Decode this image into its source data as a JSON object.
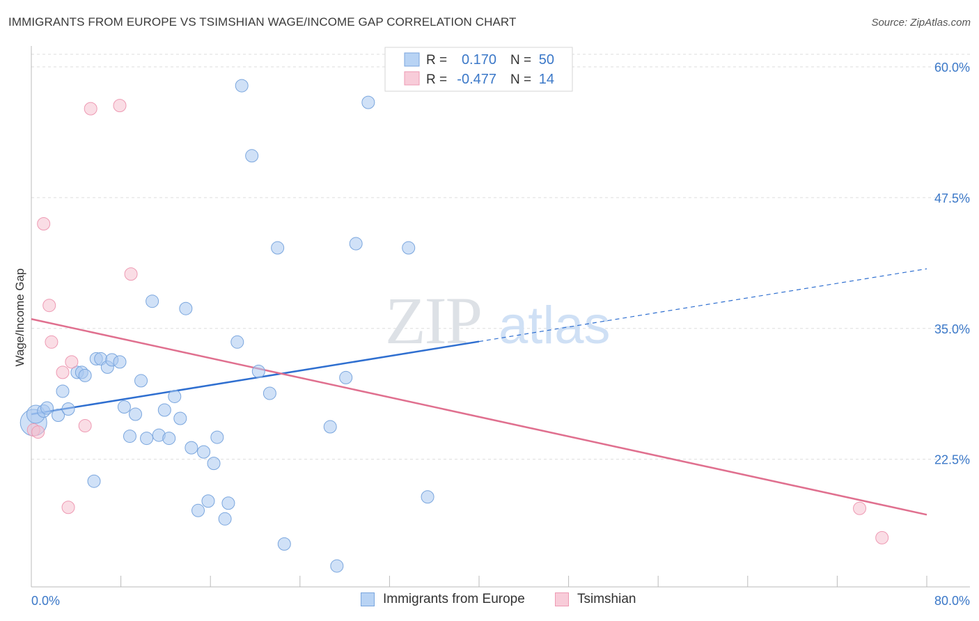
{
  "title": "IMMIGRANTS FROM EUROPE VS TSIMSHIAN WAGE/INCOME GAP CORRELATION CHART",
  "source": "Source: ZipAtlas.com",
  "watermark": {
    "zip": "ZIP",
    "atlas": "atlas"
  },
  "legend_top": {
    "rows": [
      {
        "r_label": "R =",
        "r_value": "0.170",
        "n_label": "N =",
        "n_value": "50"
      },
      {
        "r_label": "R =",
        "r_value": "-0.477",
        "n_label": "N =",
        "n_value": "14"
      }
    ]
  },
  "legend_bottom": {
    "items": [
      "Immigrants from Europe",
      "Tsimshian"
    ]
  },
  "colors": {
    "blue_fill": "#a9c8f0",
    "blue_stroke": "#7aa6de",
    "blue_line": "#2f6fd0",
    "pink_fill": "#f6c1d0",
    "pink_stroke": "#ee9ab3",
    "pink_line": "#e0708f",
    "axis_text": "#3b78c8",
    "grid": "#dddddd"
  },
  "chart_data": {
    "type": "scatter",
    "title": "IMMIGRANTS FROM EUROPE VS TSIMSHIAN WAGE/INCOME GAP CORRELATION CHART",
    "xlabel": "",
    "ylabel": "Wage/Income Gap",
    "xlim": [
      0,
      80
    ],
    "ylim": [
      10.3,
      61.2
    ],
    "x_tick_labels": [
      "0.0%",
      "80.0%"
    ],
    "y_ticks": [
      22.5,
      35.0,
      47.5,
      60.0
    ],
    "y_tick_labels": [
      "22.5%",
      "35.0%",
      "47.5%",
      "60.0%"
    ],
    "grid": true,
    "legend": "top-center",
    "series": [
      {
        "name": "Immigrants from Europe",
        "points": [
          [
            0.2,
            26.0,
            3
          ],
          [
            0.4,
            26.8,
            2
          ],
          [
            1.1,
            27.1,
            1
          ],
          [
            1.4,
            27.4,
            1
          ],
          [
            2.4,
            26.7,
            1
          ],
          [
            2.8,
            29.0,
            1
          ],
          [
            3.3,
            27.3,
            1
          ],
          [
            4.1,
            30.8,
            1
          ],
          [
            4.5,
            30.8,
            1
          ],
          [
            4.8,
            30.5,
            1
          ],
          [
            5.6,
            20.4,
            1
          ],
          [
            5.8,
            32.1,
            1
          ],
          [
            6.2,
            32.1,
            1
          ],
          [
            6.8,
            31.3,
            1
          ],
          [
            7.2,
            32.0,
            1
          ],
          [
            7.9,
            31.8,
            1
          ],
          [
            8.3,
            27.5,
            1
          ],
          [
            8.8,
            24.7,
            1
          ],
          [
            9.3,
            26.8,
            1
          ],
          [
            9.8,
            30.0,
            1
          ],
          [
            10.3,
            24.5,
            1
          ],
          [
            10.8,
            37.6,
            1
          ],
          [
            11.4,
            24.8,
            1
          ],
          [
            11.9,
            27.2,
            1
          ],
          [
            12.3,
            24.5,
            1
          ],
          [
            12.8,
            28.5,
            1
          ],
          [
            13.3,
            26.4,
            1
          ],
          [
            13.8,
            36.9,
            1
          ],
          [
            14.3,
            23.6,
            1
          ],
          [
            15.4,
            23.2,
            1
          ],
          [
            15.8,
            18.5,
            1
          ],
          [
            16.3,
            22.1,
            1
          ],
          [
            16.6,
            24.6,
            1
          ],
          [
            14.9,
            17.6,
            1
          ],
          [
            17.3,
            16.8,
            1
          ],
          [
            17.6,
            18.3,
            1
          ],
          [
            18.4,
            33.7,
            1
          ],
          [
            18.8,
            58.2,
            1
          ],
          [
            19.7,
            51.5,
            1
          ],
          [
            20.3,
            30.9,
            1
          ],
          [
            21.3,
            28.8,
            1
          ],
          [
            22.0,
            42.7,
            1
          ],
          [
            22.6,
            14.4,
            1
          ],
          [
            26.7,
            25.6,
            1
          ],
          [
            27.3,
            12.3,
            1
          ],
          [
            28.1,
            30.3,
            1
          ],
          [
            29.0,
            43.1,
            1
          ],
          [
            30.1,
            56.6,
            1
          ],
          [
            33.7,
            42.7,
            1
          ],
          [
            35.4,
            18.9,
            1
          ]
        ]
      },
      {
        "name": "Tsimshian",
        "points": [
          [
            0.2,
            25.3,
            1
          ],
          [
            0.6,
            25.1,
            1
          ],
          [
            1.1,
            45.0,
            1
          ],
          [
            1.6,
            37.2,
            1
          ],
          [
            1.8,
            33.7,
            1
          ],
          [
            2.8,
            30.8,
            1
          ],
          [
            3.3,
            17.9,
            1
          ],
          [
            3.6,
            31.8,
            1
          ],
          [
            4.8,
            25.7,
            1
          ],
          [
            5.3,
            56.0,
            1
          ],
          [
            7.9,
            56.3,
            1
          ],
          [
            8.9,
            40.2,
            1
          ],
          [
            74.0,
            17.8,
            1
          ],
          [
            76.0,
            15.0,
            1
          ]
        ]
      }
    ],
    "trendlines": [
      {
        "series": "Immigrants from Europe",
        "x": [
          0,
          80
        ],
        "y": [
          26.8,
          40.7
        ],
        "solid_until_x": 40
      },
      {
        "series": "Tsimshian",
        "x": [
          0,
          80
        ],
        "y": [
          35.9,
          17.2
        ]
      }
    ]
  }
}
